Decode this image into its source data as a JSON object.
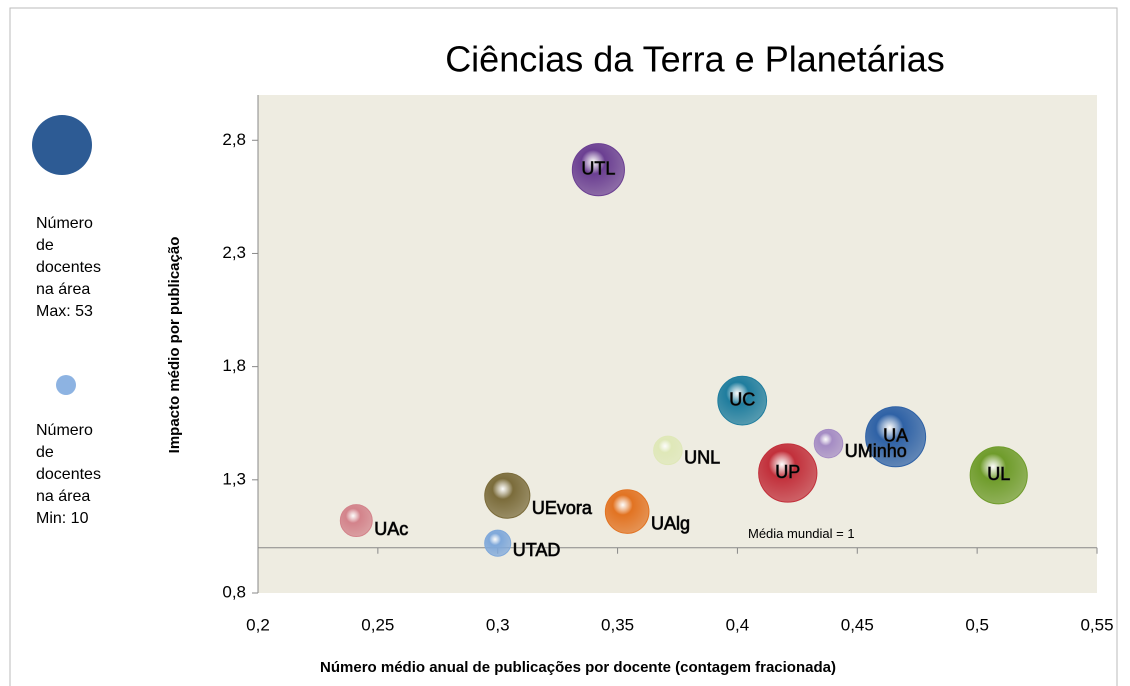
{
  "chart_data": {
    "type": "bubble",
    "title": "Ciências da Terra e Planetárias",
    "xlabel": "Número  médio anual de publicações por docente (contagem fracionada)",
    "ylabel": "Impacto médio por publicação",
    "xlim": [
      0.2,
      0.55
    ],
    "ylim": [
      0.8,
      3.0
    ],
    "xticks": [
      {
        "value": 0.2,
        "label": "0,2"
      },
      {
        "value": 0.25,
        "label": "0,25"
      },
      {
        "value": 0.3,
        "label": "0,3"
      },
      {
        "value": 0.35,
        "label": "0,35"
      },
      {
        "value": 0.4,
        "label": "0,4"
      },
      {
        "value": 0.45,
        "label": "0,45"
      },
      {
        "value": 0.5,
        "label": "0,5"
      },
      {
        "value": 0.55,
        "label": "0,55"
      }
    ],
    "yticks": [
      {
        "value": 0.8,
        "label": "0,8"
      },
      {
        "value": 1.3,
        "label": "1,3"
      },
      {
        "value": 1.8,
        "label": "1,8"
      },
      {
        "value": 2.3,
        "label": "2,3"
      },
      {
        "value": 2.8,
        "label": "2,8"
      }
    ],
    "reference_line": {
      "value": 1,
      "label": "Média mundial = 1"
    },
    "points": [
      {
        "name": "UTL",
        "color": "#6b3f92",
        "x": 0.342,
        "y": 2.67,
        "size": 40
      },
      {
        "name": "UC",
        "color": "#1f7d9e",
        "x": 0.402,
        "y": 1.65,
        "size": 35
      },
      {
        "name": "UNL",
        "color": "#dfe8b8",
        "x": 0.371,
        "y": 1.43,
        "size": 12
      },
      {
        "name": "UA",
        "color": "#2f62a6",
        "x": 0.466,
        "y": 1.49,
        "size": 53
      },
      {
        "name": "UMinho",
        "color": "#a58cc4",
        "x": 0.438,
        "y": 1.46,
        "size": 12
      },
      {
        "name": "UP",
        "color": "#c2303b",
        "x": 0.421,
        "y": 1.33,
        "size": 50
      },
      {
        "name": "UL",
        "color": "#6f9c2b",
        "x": 0.509,
        "y": 1.32,
        "size": 48
      },
      {
        "name": "UEvora",
        "color": "#7b6c3b",
        "x": 0.304,
        "y": 1.23,
        "size": 30
      },
      {
        "name": "UAlg",
        "color": "#e27322",
        "x": 0.354,
        "y": 1.16,
        "size": 28
      },
      {
        "name": "UAc",
        "color": "#d3838b",
        "x": 0.241,
        "y": 1.12,
        "size": 15
      },
      {
        "name": "UTAD",
        "color": "#7fa8da",
        "x": 0.3,
        "y": 1.02,
        "size": 10
      }
    ],
    "size_legend": [
      {
        "lines": [
          "Número",
          "de",
          "docentes",
          "na área",
          "Max: 53"
        ],
        "value": 53,
        "color": "#2d5b94"
      },
      {
        "lines": [
          "Número",
          "de",
          "docentes",
          "na área",
          "Min: 10"
        ],
        "value": 10,
        "color": "#8db3e2"
      }
    ]
  }
}
